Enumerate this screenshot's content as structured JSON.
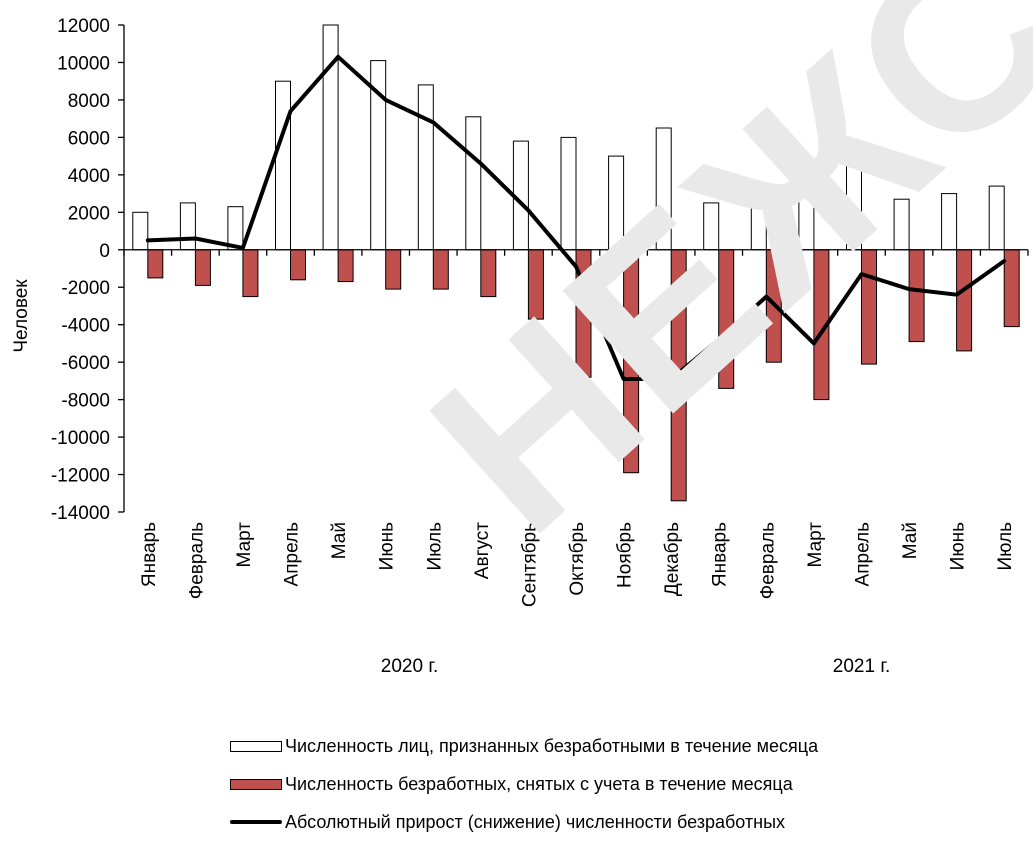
{
  "chart_data": {
    "type": "bar",
    "ylabel": "Человек",
    "ylim": [
      -14000,
      12000
    ],
    "yticks": [
      "12000",
      "10000",
      "8000",
      "6000",
      "4000",
      "2000",
      "0",
      "-2000",
      "-4000",
      "-6000",
      "-8000",
      "-10000",
      "-12000",
      "-14000"
    ],
    "ytick_values": [
      12000,
      10000,
      8000,
      6000,
      4000,
      2000,
      0,
      -2000,
      -4000,
      -6000,
      -8000,
      -10000,
      -12000,
      -14000
    ],
    "categories": [
      "Январь",
      "Февраль",
      "Март",
      "Апрель",
      "Май",
      "Июнь",
      "Июль",
      "Август",
      "Сентябрь",
      "Октябрь",
      "Ноябрь",
      "Декабрь",
      "Январь",
      "Февраль",
      "Март",
      "Апрель",
      "Май",
      "Июнь",
      "Июль"
    ],
    "year_labels": [
      {
        "label": "2020 г.",
        "start": 0,
        "end": 11
      },
      {
        "label": "2021 г.",
        "start": 12,
        "end": 18
      }
    ],
    "series": [
      {
        "name": "Численность лиц, признанных безработными в течение месяца",
        "type": "bar",
        "color": "#ffffff",
        "stroke": "#000000",
        "values": [
          2000,
          2500,
          2300,
          9000,
          12000,
          10100,
          8800,
          7100,
          5800,
          6000,
          5000,
          6500,
          2500,
          3500,
          3000,
          4800,
          2700,
          3000,
          3400
        ]
      },
      {
        "name": "Численность безработных, снятых с учета в течение месяца",
        "type": "bar",
        "color": "#c0504d",
        "stroke": "#000000",
        "values": [
          -1500,
          -1900,
          -2500,
          -1600,
          -1700,
          -2100,
          -2100,
          -2500,
          -3700,
          -6800,
          -11900,
          -13400,
          -7400,
          -6000,
          -8000,
          -6100,
          -4900,
          -5400,
          -4100
        ]
      },
      {
        "name": "Абсолютный прирост (снижение) численности безработных",
        "type": "line",
        "color": "#000000",
        "values": [
          500,
          600,
          100,
          7400,
          10300,
          8000,
          6800,
          4600,
          2100,
          -900,
          -6900,
          -6900,
          -4800,
          -2500,
          -5000,
          -1300,
          -2100,
          -2400,
          -600
        ]
      }
    ],
    "legend_position": "bottom",
    "grid": false
  },
  "watermark": "НЕЖСТАТ"
}
